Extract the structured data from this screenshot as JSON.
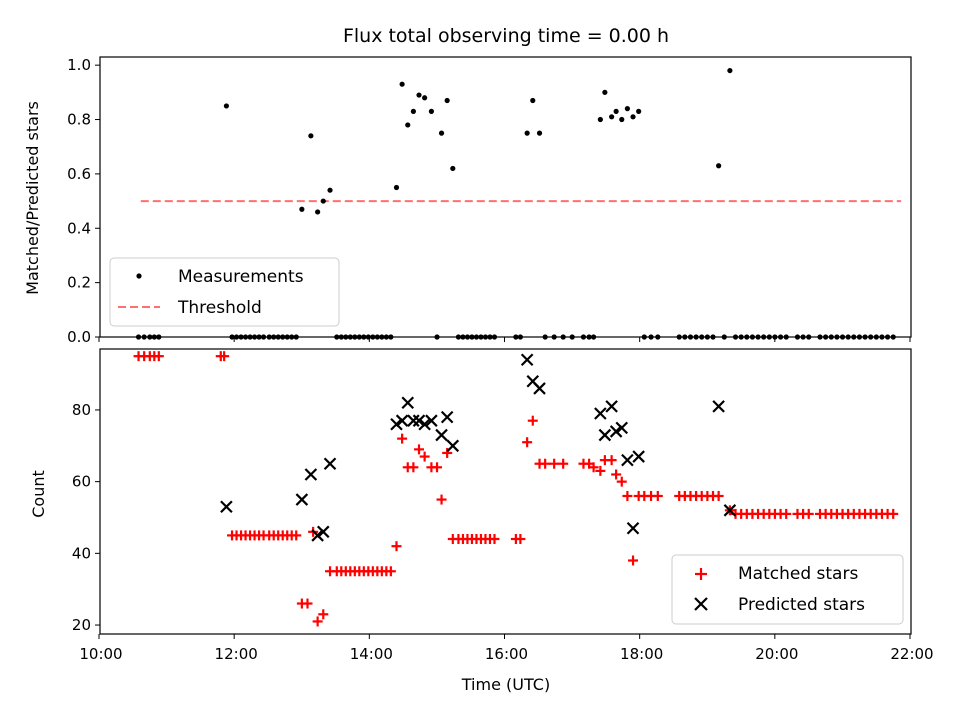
{
  "title": "Flux total observing time = 0.00 h",
  "chart_data": [
    {
      "type": "scatter",
      "ylabel": "Matched/Predicted stars",
      "xlim": [
        "10:00",
        "22:00"
      ],
      "ylim": [
        0.0,
        1.03
      ],
      "yticks": [
        "0.0",
        "0.2",
        "0.4",
        "0.6",
        "0.8",
        "1.0"
      ],
      "legend": {
        "position": "lower-left",
        "entries": [
          {
            "label": "Measurements",
            "marker": "dot",
            "color": "#000000"
          },
          {
            "label": "Threshold",
            "marker": "dashed-line",
            "color": "#ff7070"
          }
        ]
      },
      "threshold": {
        "value": 0.5,
        "x_start": "10:30",
        "x_end": "21:45",
        "color": "#ff7070"
      },
      "measurements": [
        [
          "10:28",
          0
        ],
        [
          "10:33",
          0
        ],
        [
          "10:38",
          0
        ],
        [
          "10:42",
          0
        ],
        [
          "10:46",
          0
        ],
        [
          "11:46",
          0.85
        ],
        [
          "11:51",
          0
        ],
        [
          "11:55",
          0
        ],
        [
          "11:59",
          0
        ],
        [
          "12:03",
          0
        ],
        [
          "12:07",
          0
        ],
        [
          "12:11",
          0
        ],
        [
          "12:15",
          0
        ],
        [
          "12:19",
          0
        ],
        [
          "12:24",
          0
        ],
        [
          "12:28",
          0
        ],
        [
          "12:32",
          0
        ],
        [
          "12:36",
          0
        ],
        [
          "12:40",
          0
        ],
        [
          "12:44",
          0
        ],
        [
          "12:48",
          0
        ],
        [
          "12:53",
          0.47
        ],
        [
          "13:01",
          0.74
        ],
        [
          "13:07",
          0.46
        ],
        [
          "13:12",
          0.5
        ],
        [
          "13:18",
          0.54
        ],
        [
          "13:24",
          0
        ],
        [
          "13:28",
          0
        ],
        [
          "13:32",
          0
        ],
        [
          "13:36",
          0
        ],
        [
          "13:40",
          0
        ],
        [
          "13:44",
          0
        ],
        [
          "13:48",
          0
        ],
        [
          "13:52",
          0
        ],
        [
          "13:56",
          0
        ],
        [
          "14:00",
          0
        ],
        [
          "14:04",
          0
        ],
        [
          "14:08",
          0
        ],
        [
          "14:12",
          0
        ],
        [
          "14:17",
          0.55
        ],
        [
          "14:22",
          0.93
        ],
        [
          "14:27",
          0.78
        ],
        [
          "14:32",
          0.83
        ],
        [
          "14:37",
          0.89
        ],
        [
          "14:42",
          0.88
        ],
        [
          "14:48",
          0.83
        ],
        [
          "14:53",
          0
        ],
        [
          "14:57",
          0.75
        ],
        [
          "15:02",
          0.87
        ],
        [
          "15:07",
          0.62
        ],
        [
          "15:12",
          0
        ],
        [
          "15:16",
          0
        ],
        [
          "15:20",
          0
        ],
        [
          "15:24",
          0
        ],
        [
          "15:28",
          0
        ],
        [
          "15:32",
          0
        ],
        [
          "15:36",
          0
        ],
        [
          "15:40",
          0
        ],
        [
          "15:44",
          0
        ],
        [
          "16:03",
          0
        ],
        [
          "16:07",
          0
        ],
        [
          "16:13",
          0.75
        ],
        [
          "16:18",
          0.87
        ],
        [
          "16:24",
          0.75
        ],
        [
          "16:29",
          0
        ],
        [
          "16:37",
          0
        ],
        [
          "16:45",
          0
        ],
        [
          "16:53",
          0
        ],
        [
          "17:03",
          0
        ],
        [
          "17:08",
          0
        ],
        [
          "17:12",
          0
        ],
        [
          "17:18",
          0.8
        ],
        [
          "17:22",
          0.9
        ],
        [
          "17:28",
          0.81
        ],
        [
          "17:32",
          0.83
        ],
        [
          "17:37",
          0.8
        ],
        [
          "17:42",
          0.84
        ],
        [
          "17:47",
          0.81
        ],
        [
          "17:52",
          0.83
        ],
        [
          "17:57",
          0
        ],
        [
          "18:03",
          0
        ],
        [
          "18:09",
          0
        ],
        [
          "18:28",
          0
        ],
        [
          "18:33",
          0
        ],
        [
          "18:38",
          0
        ],
        [
          "18:43",
          0
        ],
        [
          "18:48",
          0
        ],
        [
          "18:53",
          0
        ],
        [
          "18:58",
          0
        ],
        [
          "19:03",
          0.63
        ],
        [
          "19:08",
          0
        ],
        [
          "19:13",
          0.98
        ],
        [
          "19:18",
          0
        ],
        [
          "19:23",
          0
        ],
        [
          "19:28",
          0
        ],
        [
          "19:33",
          0
        ],
        [
          "19:38",
          0
        ],
        [
          "19:43",
          0
        ],
        [
          "19:48",
          0
        ],
        [
          "19:53",
          0
        ],
        [
          "19:58",
          0
        ],
        [
          "20:03",
          0
        ],
        [
          "20:13",
          0
        ],
        [
          "20:18",
          0
        ],
        [
          "20:23",
          0
        ],
        [
          "20:33",
          0
        ],
        [
          "20:38",
          0
        ],
        [
          "20:43",
          0
        ],
        [
          "20:48",
          0
        ],
        [
          "20:53",
          0
        ],
        [
          "20:58",
          0
        ],
        [
          "21:03",
          0
        ],
        [
          "21:08",
          0
        ],
        [
          "21:13",
          0
        ],
        [
          "21:18",
          0
        ],
        [
          "21:23",
          0
        ],
        [
          "21:28",
          0
        ],
        [
          "21:33",
          0
        ],
        [
          "21:38",
          0
        ]
      ]
    },
    {
      "type": "scatter",
      "xlabel": "Time (UTC)",
      "ylabel": "Count",
      "xlim": [
        "10:00",
        "22:00"
      ],
      "ylim": [
        17.5,
        97
      ],
      "xticks": [
        "10:00",
        "12:00",
        "14:00",
        "16:00",
        "18:00",
        "20:00",
        "22:00"
      ],
      "yticks": [
        "20",
        "40",
        "60",
        "80"
      ],
      "legend": {
        "position": "lower-right",
        "entries": [
          {
            "label": "Matched stars",
            "marker": "plus",
            "color": "#ff0000"
          },
          {
            "label": "Predicted stars",
            "marker": "x",
            "color": "#000000"
          }
        ]
      },
      "series": [
        {
          "name": "Matched stars",
          "marker": "plus",
          "color": "#ff0000",
          "points": [
            [
              "10:28",
              95
            ],
            [
              "10:33",
              95
            ],
            [
              "10:38",
              95
            ],
            [
              "10:42",
              95
            ],
            [
              "10:46",
              95
            ],
            [
              "11:41",
              95
            ],
            [
              "11:44",
              95
            ],
            [
              "11:51",
              45
            ],
            [
              "11:55",
              45
            ],
            [
              "11:59",
              45
            ],
            [
              "12:03",
              45
            ],
            [
              "12:07",
              45
            ],
            [
              "12:11",
              45
            ],
            [
              "12:15",
              45
            ],
            [
              "12:19",
              45
            ],
            [
              "12:24",
              45
            ],
            [
              "12:28",
              45
            ],
            [
              "12:32",
              45
            ],
            [
              "12:36",
              45
            ],
            [
              "12:40",
              45
            ],
            [
              "12:44",
              45
            ],
            [
              "12:48",
              45
            ],
            [
              "12:53",
              26
            ],
            [
              "12:58",
              26
            ],
            [
              "13:03",
              46
            ],
            [
              "13:07",
              21
            ],
            [
              "13:12",
              23
            ],
            [
              "13:18",
              35
            ],
            [
              "13:24",
              35
            ],
            [
              "13:28",
              35
            ],
            [
              "13:32",
              35
            ],
            [
              "13:36",
              35
            ],
            [
              "13:40",
              35
            ],
            [
              "13:44",
              35
            ],
            [
              "13:48",
              35
            ],
            [
              "13:52",
              35
            ],
            [
              "13:56",
              35
            ],
            [
              "14:00",
              35
            ],
            [
              "14:04",
              35
            ],
            [
              "14:08",
              35
            ],
            [
              "14:12",
              35
            ],
            [
              "14:17",
              42
            ],
            [
              "14:22",
              72
            ],
            [
              "14:27",
              64
            ],
            [
              "14:32",
              64
            ],
            [
              "14:37",
              69
            ],
            [
              "14:42",
              67
            ],
            [
              "14:48",
              64
            ],
            [
              "14:53",
              64
            ],
            [
              "14:57",
              55
            ],
            [
              "15:02",
              68
            ],
            [
              "15:07",
              44
            ],
            [
              "15:12",
              44
            ],
            [
              "15:16",
              44
            ],
            [
              "15:20",
              44
            ],
            [
              "15:24",
              44
            ],
            [
              "15:28",
              44
            ],
            [
              "15:32",
              44
            ],
            [
              "15:36",
              44
            ],
            [
              "15:40",
              44
            ],
            [
              "15:44",
              44
            ],
            [
              "16:03",
              44
            ],
            [
              "16:07",
              44
            ],
            [
              "16:13",
              71
            ],
            [
              "16:18",
              77
            ],
            [
              "16:24",
              65
            ],
            [
              "16:29",
              65
            ],
            [
              "16:37",
              65
            ],
            [
              "16:45",
              65
            ],
            [
              "17:03",
              65
            ],
            [
              "17:08",
              65
            ],
            [
              "17:12",
              64
            ],
            [
              "17:18",
              63
            ],
            [
              "17:22",
              66
            ],
            [
              "17:28",
              66
            ],
            [
              "17:32",
              62
            ],
            [
              "17:37",
              60
            ],
            [
              "17:42",
              56
            ],
            [
              "17:47",
              38
            ],
            [
              "17:52",
              56
            ],
            [
              "17:57",
              56
            ],
            [
              "18:03",
              56
            ],
            [
              "18:09",
              56
            ],
            [
              "18:28",
              56
            ],
            [
              "18:33",
              56
            ],
            [
              "18:38",
              56
            ],
            [
              "18:43",
              56
            ],
            [
              "18:48",
              56
            ],
            [
              "18:53",
              56
            ],
            [
              "18:58",
              56
            ],
            [
              "19:03",
              56
            ],
            [
              "19:13",
              52
            ],
            [
              "19:18",
              51
            ],
            [
              "19:23",
              51
            ],
            [
              "19:28",
              51
            ],
            [
              "19:33",
              51
            ],
            [
              "19:38",
              51
            ],
            [
              "19:43",
              51
            ],
            [
              "19:48",
              51
            ],
            [
              "19:53",
              51
            ],
            [
              "19:58",
              51
            ],
            [
              "20:03",
              51
            ],
            [
              "20:13",
              51
            ],
            [
              "20:18",
              51
            ],
            [
              "20:23",
              51
            ],
            [
              "20:33",
              51
            ],
            [
              "20:38",
              51
            ],
            [
              "20:43",
              51
            ],
            [
              "20:48",
              51
            ],
            [
              "20:53",
              51
            ],
            [
              "20:58",
              51
            ],
            [
              "21:03",
              51
            ],
            [
              "21:08",
              51
            ],
            [
              "21:13",
              51
            ],
            [
              "21:18",
              51
            ],
            [
              "21:23",
              51
            ],
            [
              "21:28",
              51
            ],
            [
              "21:33",
              51
            ],
            [
              "21:38",
              51
            ]
          ]
        },
        {
          "name": "Predicted stars",
          "marker": "x",
          "color": "#000000",
          "points": [
            [
              "11:46",
              53
            ],
            [
              "12:53",
              55
            ],
            [
              "13:01",
              62
            ],
            [
              "13:07",
              45
            ],
            [
              "13:12",
              46
            ],
            [
              "13:18",
              65
            ],
            [
              "14:17",
              76
            ],
            [
              "14:22",
              77
            ],
            [
              "14:27",
              82
            ],
            [
              "14:32",
              77
            ],
            [
              "14:37",
              77
            ],
            [
              "14:42",
              76
            ],
            [
              "14:48",
              77
            ],
            [
              "14:57",
              73
            ],
            [
              "15:02",
              78
            ],
            [
              "15:07",
              70
            ],
            [
              "16:13",
              94
            ],
            [
              "16:18",
              88
            ],
            [
              "16:24",
              86
            ],
            [
              "17:18",
              79
            ],
            [
              "17:22",
              73
            ],
            [
              "17:28",
              81
            ],
            [
              "17:32",
              74
            ],
            [
              "17:37",
              75
            ],
            [
              "17:42",
              66
            ],
            [
              "17:47",
              47
            ],
            [
              "17:52",
              67
            ],
            [
              "19:03",
              81
            ],
            [
              "19:13",
              52
            ]
          ]
        }
      ]
    }
  ]
}
